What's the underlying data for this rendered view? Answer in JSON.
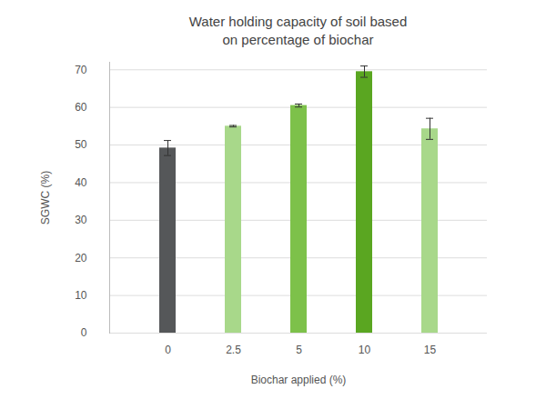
{
  "chart_data": {
    "type": "bar",
    "title": [
      "Water holding capacity of soil based",
      "on percentage of biochar"
    ],
    "x_label": "Biochar applied (%)",
    "y_label": "SGWC (%)",
    "categories": [
      "0",
      "2.5",
      "5",
      "10",
      "15"
    ],
    "values": [
      49.2,
      55.0,
      60.5,
      69.5,
      54.3
    ],
    "errors": [
      2.0,
      0.2,
      0.4,
      1.5,
      2.8
    ],
    "colors": [
      "#555759",
      "#a8d88a",
      "#7dc14a",
      "#5aa621",
      "#a8d88a"
    ],
    "ylim": [
      0,
      72
    ],
    "yticks": [
      0,
      10,
      20,
      30,
      40,
      50,
      60,
      70
    ],
    "grid": true
  }
}
